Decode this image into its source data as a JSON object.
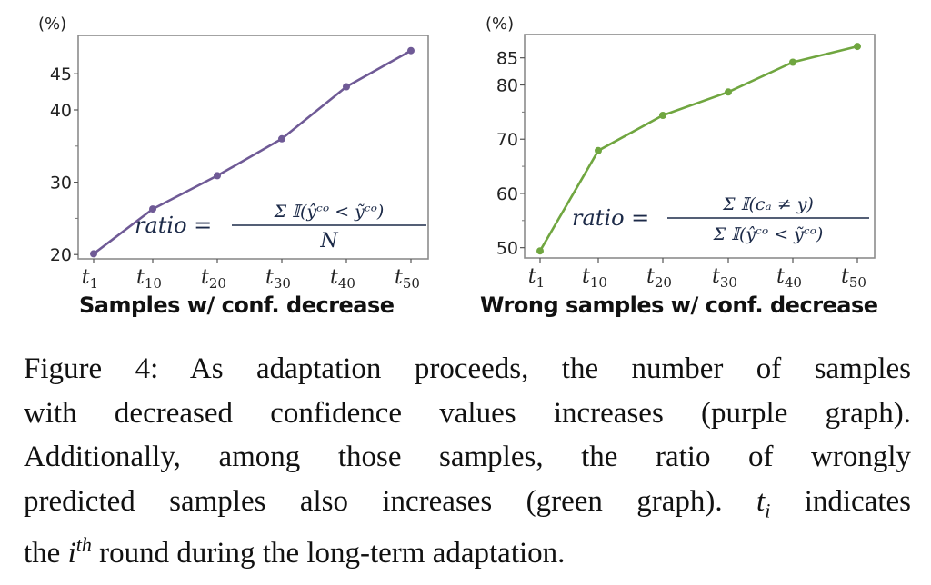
{
  "chart_data": [
    {
      "type": "line",
      "title": "Samples w/ conf. decrease",
      "ylabel": "(%)",
      "xlabel": "",
      "categories": [
        "t_1",
        "t_10",
        "t_20",
        "t_30",
        "t_40",
        "t_50"
      ],
      "category_labels": [
        {
          "base": "t",
          "sub": "1"
        },
        {
          "base": "t",
          "sub": "10"
        },
        {
          "base": "t",
          "sub": "20"
        },
        {
          "base": "t",
          "sub": "30"
        },
        {
          "base": "t",
          "sub": "40"
        },
        {
          "base": "t",
          "sub": "50"
        }
      ],
      "values": [
        20.1,
        26.3,
        30.9,
        36.0,
        43.2,
        48.2
      ],
      "ylim": [
        19.4,
        50.3
      ],
      "yticks": [
        20,
        30,
        40,
        45
      ],
      "ytick_labels": [
        "20",
        "30",
        "40",
        "45"
      ],
      "grid": false,
      "color": "#6f5a96",
      "annotation": {
        "lhs": "ratio =",
        "numerator": "Σ_{i=1}^N 𝕀(ŷ^{c_o} < ỹ^{c_o})",
        "denominator": "N"
      }
    },
    {
      "type": "line",
      "title": "Wrong samples w/ conf. decrease",
      "ylabel": "(%)",
      "xlabel": "",
      "categories": [
        "t_1",
        "t_10",
        "t_20",
        "t_30",
        "t_40",
        "t_50"
      ],
      "category_labels": [
        {
          "base": "t",
          "sub": "1"
        },
        {
          "base": "t",
          "sub": "10"
        },
        {
          "base": "t",
          "sub": "20"
        },
        {
          "base": "t",
          "sub": "30"
        },
        {
          "base": "t",
          "sub": "40"
        },
        {
          "base": "t",
          "sub": "50"
        }
      ],
      "values": [
        49.4,
        67.9,
        74.4,
        78.7,
        84.2,
        87.1
      ],
      "ylim": [
        48.1,
        89.3
      ],
      "yticks": [
        50,
        60,
        70,
        80,
        85
      ],
      "ytick_labels": [
        "50",
        "60",
        "70",
        "80",
        "85"
      ],
      "grid": false,
      "color": "#70a640",
      "annotation": {
        "lhs": "ratio =",
        "numerator": "Σ_{i=1}^N 𝕀(c_a ≠ y)",
        "denominator": "Σ_{i=1}^N 𝕀(ŷ^{c_o} < ỹ^{c_o})"
      }
    }
  ],
  "caption": {
    "lines": [
      "Figure 4:  As adaptation proceeds, the number of samples",
      "with decreased confidence values increases (purple graph).",
      "Additionally, among those samples, the ratio of wrongly",
      "predicted samples also increases (green graph).",
      "indicates",
      "the",
      "round during the long-term adaptation."
    ],
    "t_symbol": "t",
    "t_sub": "i",
    "i_symbol": "i",
    "i_sup": "th"
  }
}
